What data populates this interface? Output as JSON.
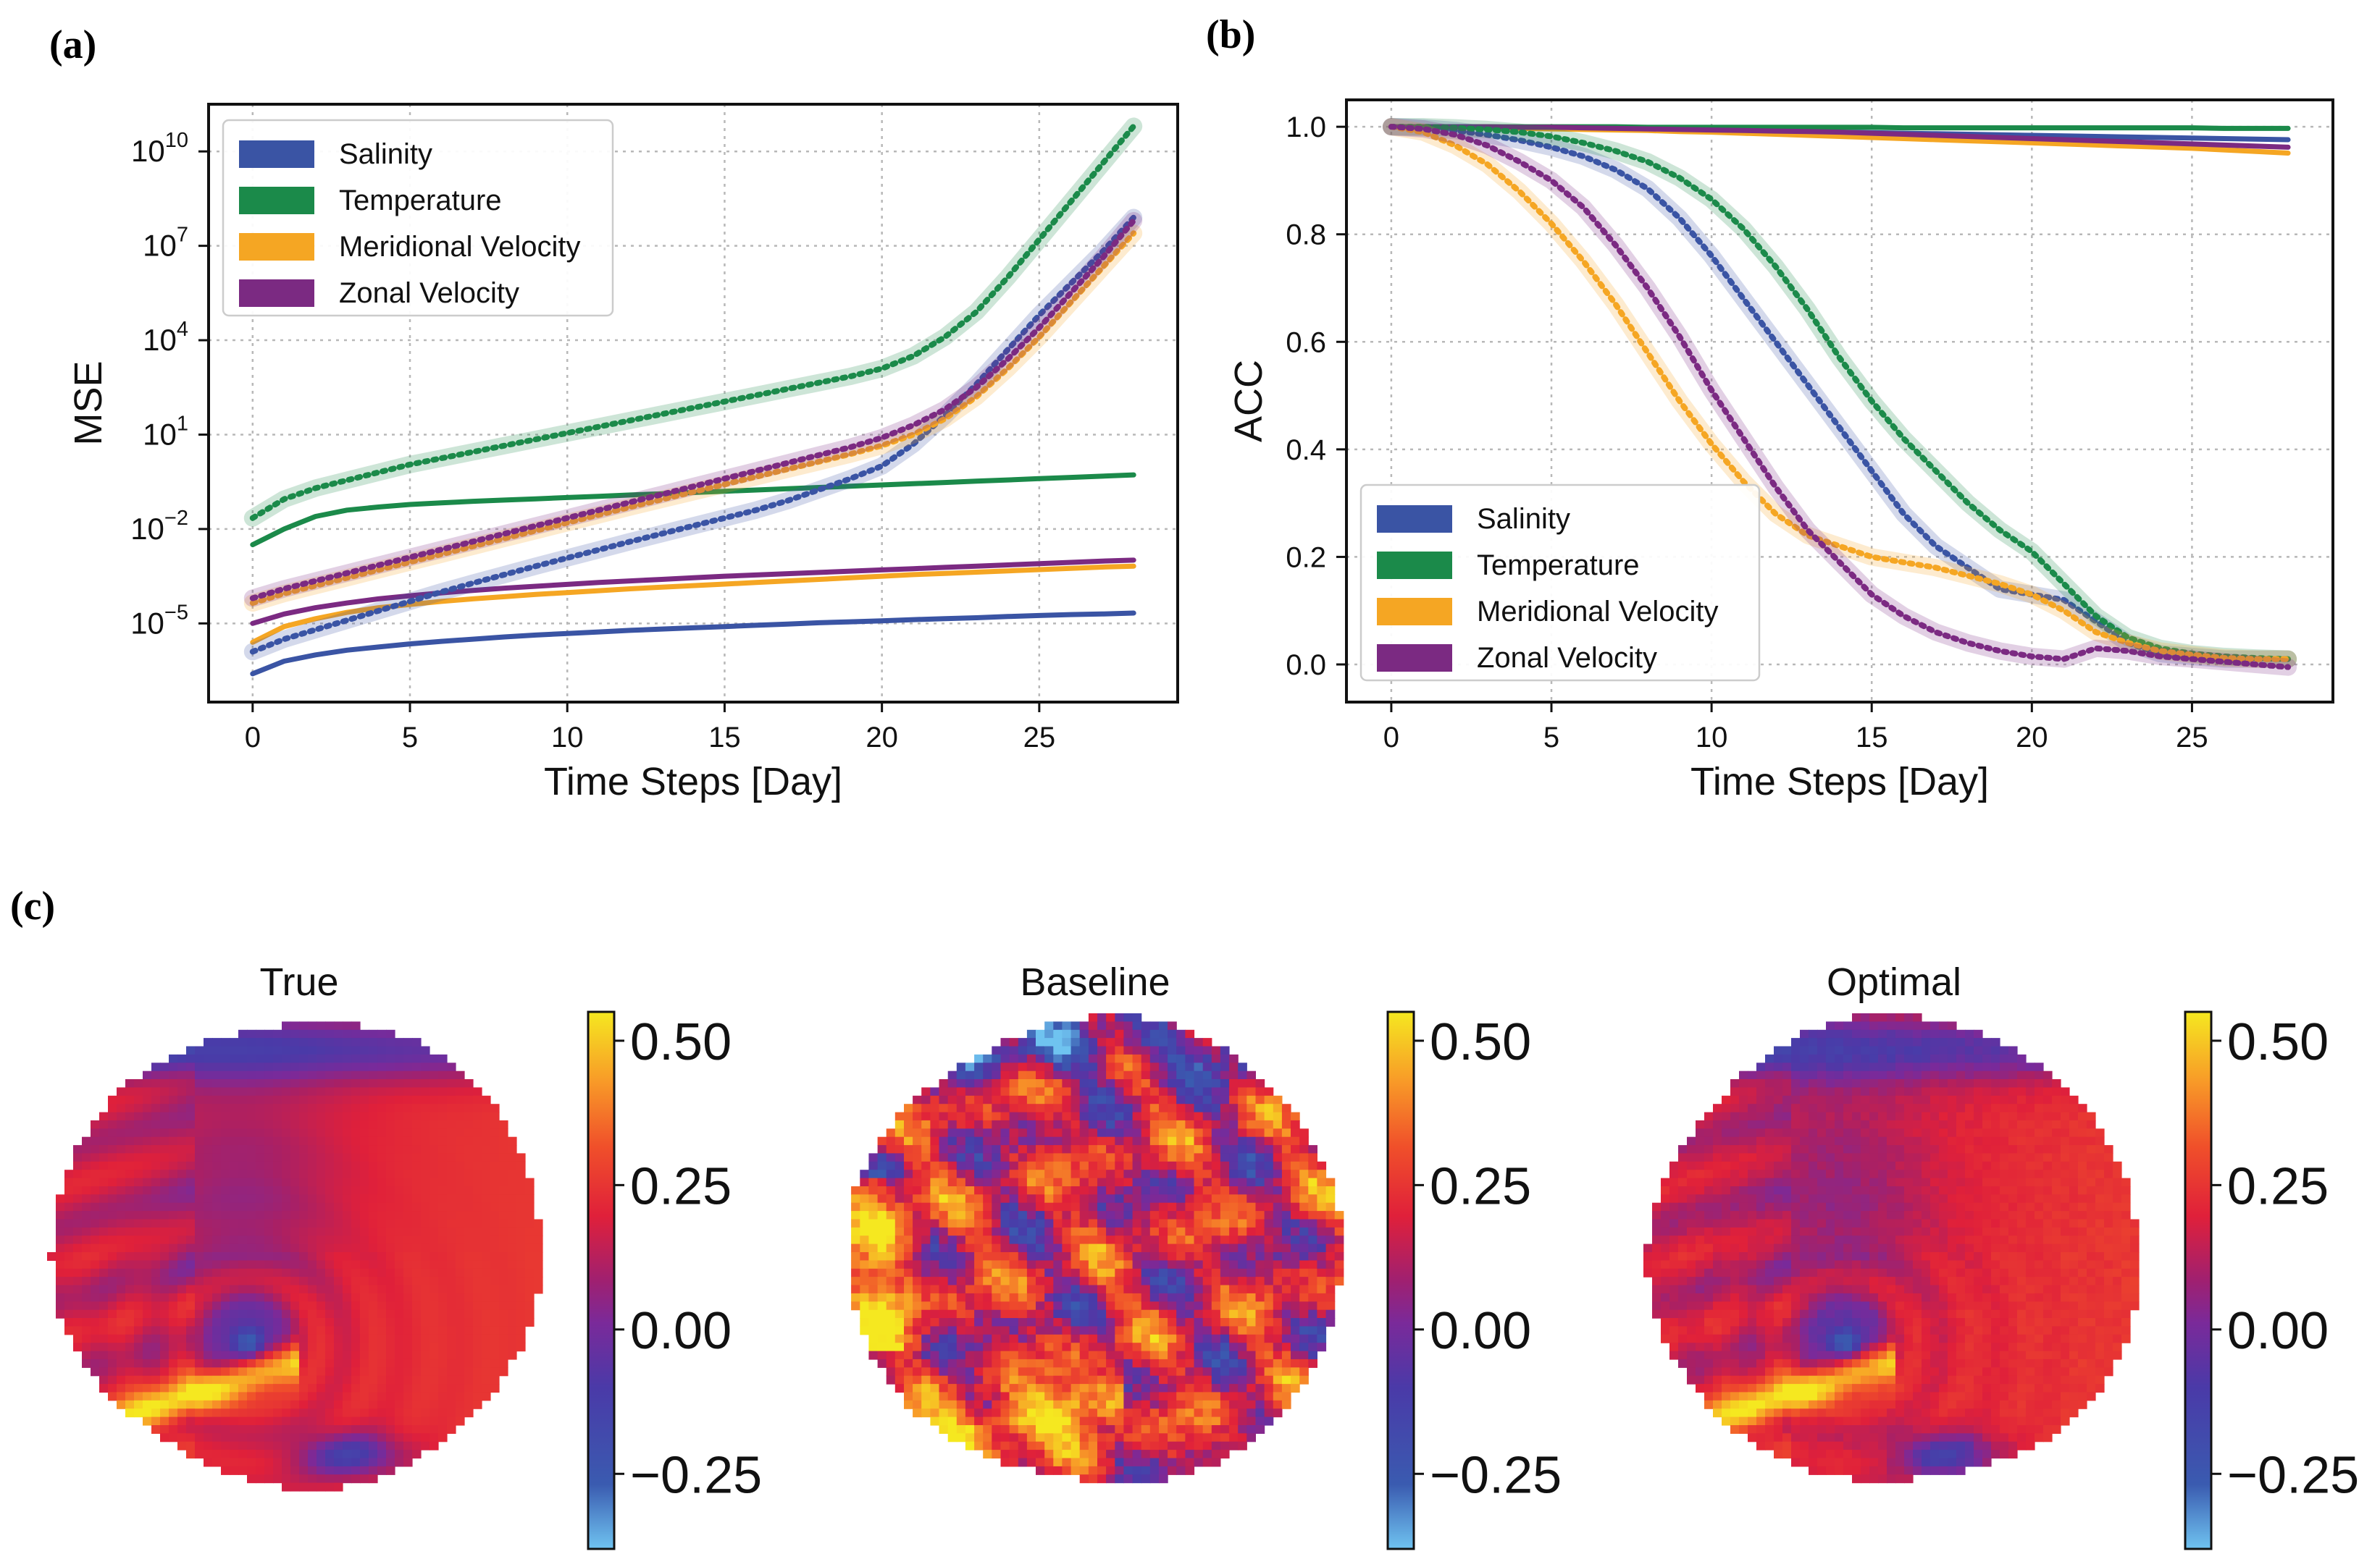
{
  "panels": {
    "a": "(a)",
    "b": "(b)",
    "c": "(c)"
  },
  "colors": {
    "salinity": "#3a54a4",
    "temperature": "#1b8a4a",
    "meridional": "#f5a623",
    "zonal": "#7b2a82"
  },
  "chart_data": [
    {
      "id": "mse",
      "type": "line",
      "yscale": "log",
      "xlabel": "Time Steps [Day]",
      "ylabel": "MSE",
      "xlim": [
        -1.4,
        29.4
      ],
      "ylim_log10": [
        -7.5,
        11.5
      ],
      "xticks": [
        "0",
        "5",
        "10",
        "15",
        "20",
        "25"
      ],
      "xtick_values": [
        0,
        5,
        10,
        15,
        20,
        25
      ],
      "yticks": [
        {
          "value_log10": 10,
          "base": "10",
          "exp": "10"
        },
        {
          "value_log10": 7,
          "base": "10",
          "exp": "7"
        },
        {
          "value_log10": 4,
          "base": "10",
          "exp": "4"
        },
        {
          "value_log10": 1,
          "base": "10",
          "exp": "1"
        },
        {
          "value_log10": -2,
          "base": "10",
          "exp": "−2"
        },
        {
          "value_log10": -5,
          "base": "10",
          "exp": "−5"
        }
      ],
      "grid": true,
      "legend_position": "top-left",
      "legend": [
        "Salinity",
        "Temperature",
        "Meridional Velocity",
        "Zonal Velocity"
      ],
      "x": [
        0,
        1,
        2,
        3,
        4,
        5,
        6,
        7,
        8,
        9,
        10,
        11,
        12,
        13,
        14,
        15,
        16,
        17,
        18,
        19,
        20,
        21,
        22,
        23,
        24,
        25,
        26,
        27,
        28
      ],
      "series": [
        {
          "name": "Salinity",
          "style": "solid",
          "color_key": "salinity",
          "values_log10": [
            -6.6,
            -6.2,
            -6.0,
            -5.85,
            -5.75,
            -5.65,
            -5.57,
            -5.5,
            -5.43,
            -5.37,
            -5.32,
            -5.27,
            -5.22,
            -5.18,
            -5.14,
            -5.1,
            -5.06,
            -5.02,
            -4.98,
            -4.95,
            -4.92,
            -4.88,
            -4.85,
            -4.82,
            -4.78,
            -4.75,
            -4.72,
            -4.7,
            -4.67
          ]
        },
        {
          "name": "Temperature",
          "style": "solid",
          "color_key": "temperature",
          "values_log10": [
            -2.5,
            -2.0,
            -1.6,
            -1.4,
            -1.3,
            -1.22,
            -1.17,
            -1.12,
            -1.08,
            -1.04,
            -1.0,
            -0.96,
            -0.92,
            -0.88,
            -0.84,
            -0.8,
            -0.76,
            -0.72,
            -0.68,
            -0.64,
            -0.6,
            -0.56,
            -0.52,
            -0.48,
            -0.44,
            -0.4,
            -0.36,
            -0.32,
            -0.28
          ]
        },
        {
          "name": "Meridional Velocity",
          "style": "solid",
          "color_key": "meridional",
          "values_log10": [
            -5.6,
            -5.1,
            -4.85,
            -4.65,
            -4.5,
            -4.4,
            -4.3,
            -4.22,
            -4.15,
            -4.08,
            -4.02,
            -3.96,
            -3.9,
            -3.85,
            -3.8,
            -3.75,
            -3.7,
            -3.65,
            -3.6,
            -3.55,
            -3.5,
            -3.45,
            -3.41,
            -3.37,
            -3.33,
            -3.29,
            -3.25,
            -3.21,
            -3.18
          ]
        },
        {
          "name": "Zonal Velocity",
          "style": "solid",
          "color_key": "zonal",
          "values_log10": [
            -5.0,
            -4.7,
            -4.5,
            -4.35,
            -4.22,
            -4.12,
            -4.03,
            -3.95,
            -3.88,
            -3.82,
            -3.76,
            -3.7,
            -3.65,
            -3.6,
            -3.55,
            -3.5,
            -3.46,
            -3.42,
            -3.38,
            -3.34,
            -3.3,
            -3.26,
            -3.22,
            -3.18,
            -3.14,
            -3.1,
            -3.06,
            -3.02,
            -2.99
          ]
        },
        {
          "name": "Salinity",
          "style": "dotted",
          "color_key": "salinity",
          "values_log10": [
            -5.9,
            -5.5,
            -5.2,
            -4.9,
            -4.6,
            -4.3,
            -4.0,
            -3.72,
            -3.45,
            -3.18,
            -2.92,
            -2.66,
            -2.4,
            -2.15,
            -1.9,
            -1.65,
            -1.4,
            -1.1,
            -0.75,
            -0.4,
            0.0,
            0.7,
            1.6,
            2.6,
            3.7,
            4.8,
            5.8,
            6.8,
            7.9
          ]
        },
        {
          "name": "Temperature",
          "style": "dotted",
          "color_key": "temperature",
          "values_log10": [
            -1.65,
            -1.05,
            -0.7,
            -0.45,
            -0.2,
            0.05,
            0.25,
            0.45,
            0.65,
            0.85,
            1.05,
            1.25,
            1.45,
            1.65,
            1.85,
            2.05,
            2.25,
            2.45,
            2.65,
            2.85,
            3.1,
            3.5,
            4.1,
            4.9,
            6.0,
            7.2,
            8.4,
            9.6,
            10.8
          ]
        },
        {
          "name": "Meridional Velocity",
          "style": "dotted",
          "color_key": "meridional",
          "values_log10": [
            -4.35,
            -4.05,
            -3.8,
            -3.55,
            -3.3,
            -3.05,
            -2.8,
            -2.55,
            -2.3,
            -2.05,
            -1.8,
            -1.55,
            -1.3,
            -1.06,
            -0.82,
            -0.58,
            -0.34,
            -0.1,
            0.14,
            0.38,
            0.65,
            1.0,
            1.5,
            2.2,
            3.1,
            4.1,
            5.2,
            6.3,
            7.4
          ]
        },
        {
          "name": "Zonal Velocity",
          "style": "dotted",
          "color_key": "zonal",
          "values_log10": [
            -4.2,
            -3.9,
            -3.65,
            -3.4,
            -3.15,
            -2.9,
            -2.65,
            -2.4,
            -2.15,
            -1.9,
            -1.65,
            -1.4,
            -1.15,
            -0.9,
            -0.65,
            -0.4,
            -0.15,
            0.1,
            0.35,
            0.6,
            0.9,
            1.3,
            1.8,
            2.5,
            3.4,
            4.4,
            5.5,
            6.6,
            7.8
          ]
        }
      ]
    },
    {
      "id": "acc",
      "type": "line",
      "yscale": "linear",
      "xlabel": "Time Steps [Day]",
      "ylabel": "ACC",
      "xlim": [
        -1.4,
        29.4
      ],
      "ylim": [
        -0.07,
        1.05
      ],
      "xticks": [
        "0",
        "5",
        "10",
        "15",
        "20",
        "25"
      ],
      "xtick_values": [
        0,
        5,
        10,
        15,
        20,
        25
      ],
      "yticks": [
        "0.0",
        "0.2",
        "0.4",
        "0.6",
        "0.8",
        "1.0"
      ],
      "ytick_values": [
        0.0,
        0.2,
        0.4,
        0.6,
        0.8,
        1.0
      ],
      "grid": true,
      "legend_position": "bottom-left",
      "legend": [
        "Salinity",
        "Temperature",
        "Meridional Velocity",
        "Zonal Velocity"
      ],
      "x": [
        0,
        1,
        2,
        3,
        4,
        5,
        6,
        7,
        8,
        9,
        10,
        11,
        12,
        13,
        14,
        15,
        16,
        17,
        18,
        19,
        20,
        21,
        22,
        23,
        24,
        25,
        26,
        27,
        28
      ],
      "series": [
        {
          "name": "Salinity",
          "style": "solid",
          "color_key": "salinity",
          "values": [
            1.0,
            1.0,
            1.0,
            1.0,
            0.999,
            0.999,
            0.998,
            0.997,
            0.996,
            0.995,
            0.994,
            0.993,
            0.992,
            0.991,
            0.99,
            0.989,
            0.988,
            0.987,
            0.986,
            0.985,
            0.984,
            0.983,
            0.982,
            0.981,
            0.98,
            0.979,
            0.978,
            0.977,
            0.976
          ]
        },
        {
          "name": "Temperature",
          "style": "solid",
          "color_key": "temperature",
          "values": [
            1.0,
            1.0,
            1.0,
            1.0,
            1.0,
            1.0,
            1.0,
            1.0,
            0.999,
            0.999,
            0.999,
            0.999,
            0.999,
            0.999,
            0.999,
            0.999,
            0.998,
            0.998,
            0.998,
            0.998,
            0.998,
            0.998,
            0.998,
            0.998,
            0.998,
            0.998,
            0.997,
            0.997,
            0.997
          ]
        },
        {
          "name": "Meridional Velocity",
          "style": "solid",
          "color_key": "meridional",
          "values": [
            1.0,
            1.0,
            0.999,
            0.998,
            0.997,
            0.996,
            0.995,
            0.994,
            0.993,
            0.991,
            0.99,
            0.988,
            0.986,
            0.984,
            0.982,
            0.98,
            0.978,
            0.976,
            0.974,
            0.972,
            0.97,
            0.968,
            0.966,
            0.964,
            0.962,
            0.96,
            0.957,
            0.954,
            0.951
          ]
        },
        {
          "name": "Zonal Velocity",
          "style": "solid",
          "color_key": "zonal",
          "values": [
            1.0,
            1.0,
            1.0,
            1.0,
            0.999,
            0.999,
            0.998,
            0.997,
            0.996,
            0.995,
            0.994,
            0.993,
            0.992,
            0.991,
            0.99,
            0.988,
            0.986,
            0.984,
            0.982,
            0.98,
            0.978,
            0.976,
            0.974,
            0.972,
            0.97,
            0.968,
            0.966,
            0.964,
            0.962
          ]
        },
        {
          "name": "Salinity",
          "style": "dotted",
          "color_key": "salinity",
          "values": [
            1.0,
            0.998,
            0.993,
            0.985,
            0.975,
            0.962,
            0.945,
            0.92,
            0.885,
            0.83,
            0.76,
            0.68,
            0.6,
            0.52,
            0.44,
            0.36,
            0.28,
            0.22,
            0.18,
            0.14,
            0.13,
            0.12,
            0.08,
            0.04,
            0.02,
            0.015,
            0.01,
            0.01,
            0.01
          ]
        },
        {
          "name": "Temperature",
          "style": "dotted",
          "color_key": "temperature",
          "values": [
            1.0,
            1.0,
            0.998,
            0.995,
            0.99,
            0.982,
            0.97,
            0.955,
            0.935,
            0.905,
            0.865,
            0.81,
            0.74,
            0.66,
            0.57,
            0.49,
            0.42,
            0.36,
            0.3,
            0.25,
            0.21,
            0.15,
            0.09,
            0.05,
            0.03,
            0.02,
            0.015,
            0.012,
            0.01
          ]
        },
        {
          "name": "Meridional Velocity",
          "style": "dotted",
          "color_key": "meridional",
          "values": [
            1.0,
            0.99,
            0.965,
            0.93,
            0.88,
            0.82,
            0.75,
            0.67,
            0.58,
            0.49,
            0.41,
            0.34,
            0.28,
            0.24,
            0.22,
            0.2,
            0.19,
            0.18,
            0.165,
            0.15,
            0.13,
            0.1,
            0.06,
            0.04,
            0.025,
            0.018,
            0.012,
            0.01,
            0.01
          ]
        },
        {
          "name": "Zonal Velocity",
          "style": "dotted",
          "color_key": "zonal",
          "values": [
            1.0,
            0.996,
            0.985,
            0.965,
            0.935,
            0.9,
            0.85,
            0.78,
            0.7,
            0.61,
            0.51,
            0.42,
            0.33,
            0.25,
            0.19,
            0.13,
            0.09,
            0.06,
            0.04,
            0.025,
            0.015,
            0.01,
            0.03,
            0.025,
            0.015,
            0.01,
            0.005,
            0.0,
            -0.005
          ]
        }
      ]
    },
    {
      "id": "maps",
      "type": "heatmap",
      "colorbar_ticks": [
        "0.50",
        "0.25",
        "0.00",
        "−0.25"
      ],
      "colorbar_values": [
        0.5,
        0.25,
        0.0,
        -0.25
      ],
      "colorbar_range": [
        -0.38,
        0.55
      ],
      "maps": [
        {
          "title": "True",
          "pattern": "smooth"
        },
        {
          "title": "Baseline",
          "pattern": "noisy"
        },
        {
          "title": "Optimal",
          "pattern": "smooth"
        }
      ]
    }
  ]
}
